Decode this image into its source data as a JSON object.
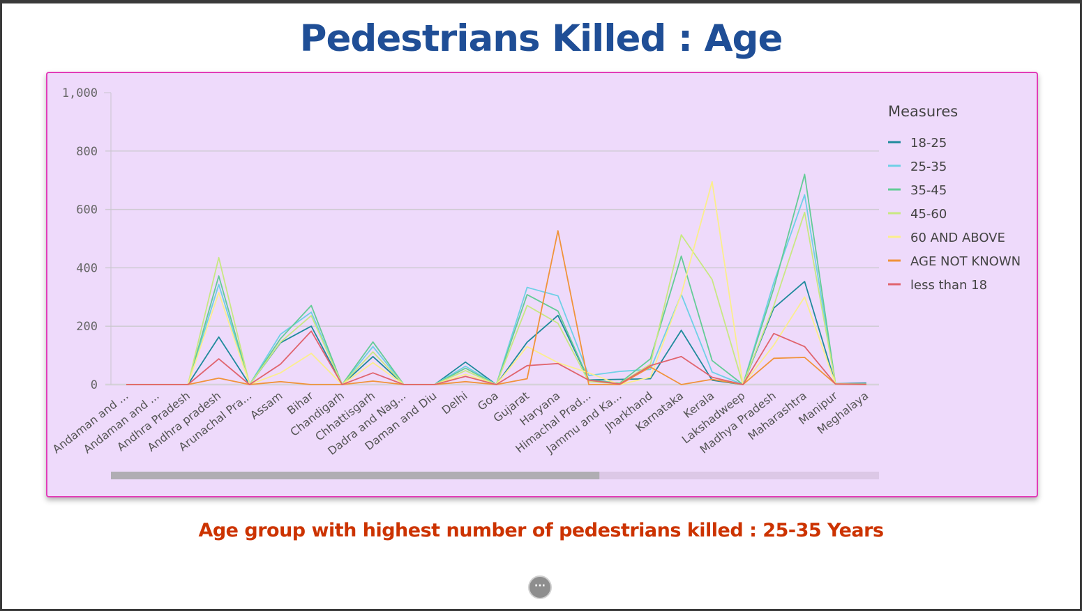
{
  "slide": {
    "title": "Pedestrians Killed : Age",
    "subtitle": "Age group with highest number of pedestrians killed : 25-35 Years",
    "more_label": "···"
  },
  "chart_data": {
    "type": "line",
    "title": "",
    "xlabel": "",
    "ylabel": "",
    "ylim": [
      0,
      1000
    ],
    "yticks": [
      0,
      200,
      400,
      600,
      800,
      1000
    ],
    "ytick_labels": [
      "0",
      "200",
      "400",
      "600",
      "800",
      "1,000"
    ],
    "grid": true,
    "legend_title": "Measures",
    "legend_position": "right",
    "categories": [
      "Andaman and ...",
      "Andaman and ...",
      "Andhra Pradesh",
      "Andhra pradesh",
      "Arunachal Pra...",
      "Assam",
      "Bihar",
      "Chandigarh",
      "Chhattisgarh",
      "Dadra and Nag...",
      "Daman and Diu",
      "Delhi",
      "Goa",
      "Gujarat",
      "Haryana",
      "Himachal Prad...",
      "Jammu and Ka...",
      "Jharkhand",
      "Karnataka",
      "Kerala",
      "Lakshadweep",
      "Madhya Pradesh",
      "Maharashtra",
      "Manipur",
      "Meghalaya"
    ],
    "series": [
      {
        "name": "18-25",
        "color": "#1f8a9c",
        "values": [
          0,
          0,
          0,
          163,
          0,
          143,
          200,
          0,
          96,
          0,
          0,
          77,
          0,
          145,
          237,
          16,
          18,
          20,
          186,
          15,
          0,
          262,
          353,
          3,
          5
        ]
      },
      {
        "name": "25-35",
        "color": "#6fd0e6",
        "values": [
          0,
          0,
          0,
          343,
          0,
          172,
          248,
          0,
          130,
          0,
          0,
          63,
          0,
          333,
          304,
          31,
          45,
          52,
          309,
          43,
          0,
          350,
          650,
          3,
          2
        ]
      },
      {
        "name": "35-45",
        "color": "#63cc96",
        "values": [
          0,
          0,
          0,
          372,
          0,
          157,
          271,
          0,
          146,
          0,
          0,
          56,
          0,
          308,
          252,
          16,
          5,
          88,
          440,
          82,
          0,
          330,
          720,
          3,
          2
        ]
      },
      {
        "name": "45-60",
        "color": "#c8e882",
        "values": [
          0,
          0,
          0,
          435,
          0,
          145,
          236,
          0,
          112,
          0,
          0,
          48,
          0,
          271,
          210,
          10,
          3,
          70,
          513,
          360,
          0,
          270,
          590,
          3,
          1
        ]
      },
      {
        "name": "60 AND ABOVE",
        "color": "#fbee8c",
        "values": [
          0,
          0,
          0,
          315,
          0,
          40,
          107,
          0,
          75,
          0,
          0,
          35,
          0,
          130,
          75,
          40,
          0,
          25,
          310,
          695,
          0,
          135,
          300,
          2,
          1
        ]
      },
      {
        "name": "AGE NOT KNOWN",
        "color": "#f0933a",
        "values": [
          0,
          0,
          0,
          22,
          0,
          10,
          0,
          0,
          12,
          0,
          0,
          10,
          0,
          20,
          527,
          0,
          0,
          60,
          0,
          18,
          0,
          90,
          93,
          2,
          0
        ]
      },
      {
        "name": "less than 18",
        "color": "#e0646e",
        "values": [
          0,
          0,
          0,
          88,
          0,
          70,
          183,
          0,
          40,
          0,
          0,
          28,
          0,
          65,
          72,
          15,
          2,
          65,
          96,
          25,
          0,
          175,
          130,
          2,
          1
        ]
      }
    ],
    "scrollbar_fraction": 0.636
  }
}
